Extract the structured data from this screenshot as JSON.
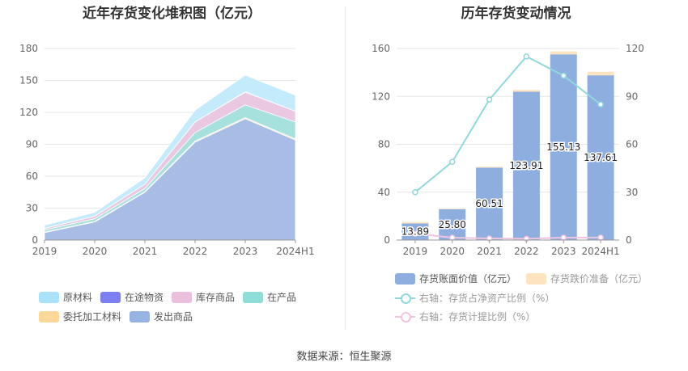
{
  "left_chart": {
    "title": "近年存货变化堆积图（亿元）",
    "legend": [
      {
        "name": "原材料",
        "color": "#a9e3f9"
      },
      {
        "name": "在途物资",
        "color": "#7b7ff0"
      },
      {
        "name": "库存商品",
        "color": "#ebc0de"
      },
      {
        "name": "在产品",
        "color": "#8fdcd9"
      },
      {
        "name": "委托加工材料",
        "color": "#fbd79a"
      },
      {
        "name": "发出商品",
        "color": "#96b3e3"
      }
    ]
  },
  "right_chart": {
    "title": "历年存货变动情况",
    "legend": [
      {
        "name": "存货账面价值（亿元）",
        "color": "#8eaedf",
        "kind": "bar"
      },
      {
        "name": "存货跌价准备（亿元）",
        "color": "#fde4bf",
        "kind": "bar"
      },
      {
        "name": "右轴：存货占净资产比例（%）",
        "color": "#8fd8dc",
        "kind": "line"
      },
      {
        "name": "右轴：存货计提比例（%）",
        "color": "#f0c4e0",
        "kind": "line"
      }
    ]
  },
  "source": "数据来源：恒生聚源",
  "chart_data": [
    {
      "type": "area",
      "stacked": true,
      "title": "近年存货变化堆积图（亿元）",
      "categories": [
        "2019",
        "2020",
        "2021",
        "2022",
        "2023",
        "2024H1"
      ],
      "ylim": [
        0,
        180
      ],
      "yticks": [
        0,
        30,
        60,
        90,
        120,
        150,
        180
      ],
      "grid": true,
      "legend_position": "bottom",
      "series": [
        {
          "name": "发出商品",
          "values": [
            7,
            17,
            45,
            92,
            114,
            94
          ],
          "color": "#a8bde5"
        },
        {
          "name": "委托加工材料",
          "values": [
            0.5,
            0.5,
            0.5,
            1,
            1,
            1
          ],
          "color": "#fbd79a"
        },
        {
          "name": "在产品",
          "values": [
            2,
            2.5,
            3,
            8,
            12,
            16
          ],
          "color": "#a6e1de"
        },
        {
          "name": "库存商品",
          "values": [
            1.5,
            2.5,
            4,
            10,
            12,
            10
          ],
          "color": "#ebc8e1"
        },
        {
          "name": "在途物资",
          "values": [
            0,
            0,
            0,
            0,
            0.3,
            0
          ],
          "color": "#7b7ff0"
        },
        {
          "name": "原材料",
          "values": [
            3,
            3.5,
            6,
            11,
            15.7,
            15
          ],
          "color": "#c3ebfb"
        }
      ]
    },
    {
      "type": "bar",
      "stacked": true,
      "title": "历年存货变动情况",
      "categories": [
        "2019",
        "2020",
        "2021",
        "2022",
        "2023",
        "2024H1"
      ],
      "ylim": [
        0,
        160
      ],
      "yticks": [
        0,
        40,
        80,
        120,
        160
      ],
      "y2lim": [
        0,
        120
      ],
      "y2ticks": [
        0,
        30,
        60,
        90,
        120
      ],
      "grid": true,
      "legend_position": "bottom",
      "series": [
        {
          "name": "存货账面价值（亿元）",
          "values": [
            13.89,
            25.8,
            60.51,
            123.91,
            155.13,
            137.61
          ],
          "labels": [
            "13.89",
            "25.80",
            "60.51",
            "123.91",
            "155.13",
            "137.61"
          ],
          "color": "#8eaedf"
        },
        {
          "name": "存货跌价准备（亿元）",
          "values": [
            1.2,
            0.5,
            0.8,
            1.5,
            2.5,
            3.0
          ],
          "color": "#fde4bf"
        }
      ],
      "line_series": [
        {
          "name": "右轴：存货占净资产比例（%）",
          "axis": "right",
          "values": [
            30,
            49,
            88,
            115,
            103,
            85
          ],
          "color": "#8fd8dc"
        },
        {
          "name": "右轴：存货计提比例（%）",
          "axis": "right",
          "values": [
            4,
            1.5,
            1,
            0.8,
            1.5,
            1.6
          ],
          "color": "#f0c4e0"
        }
      ]
    }
  ]
}
